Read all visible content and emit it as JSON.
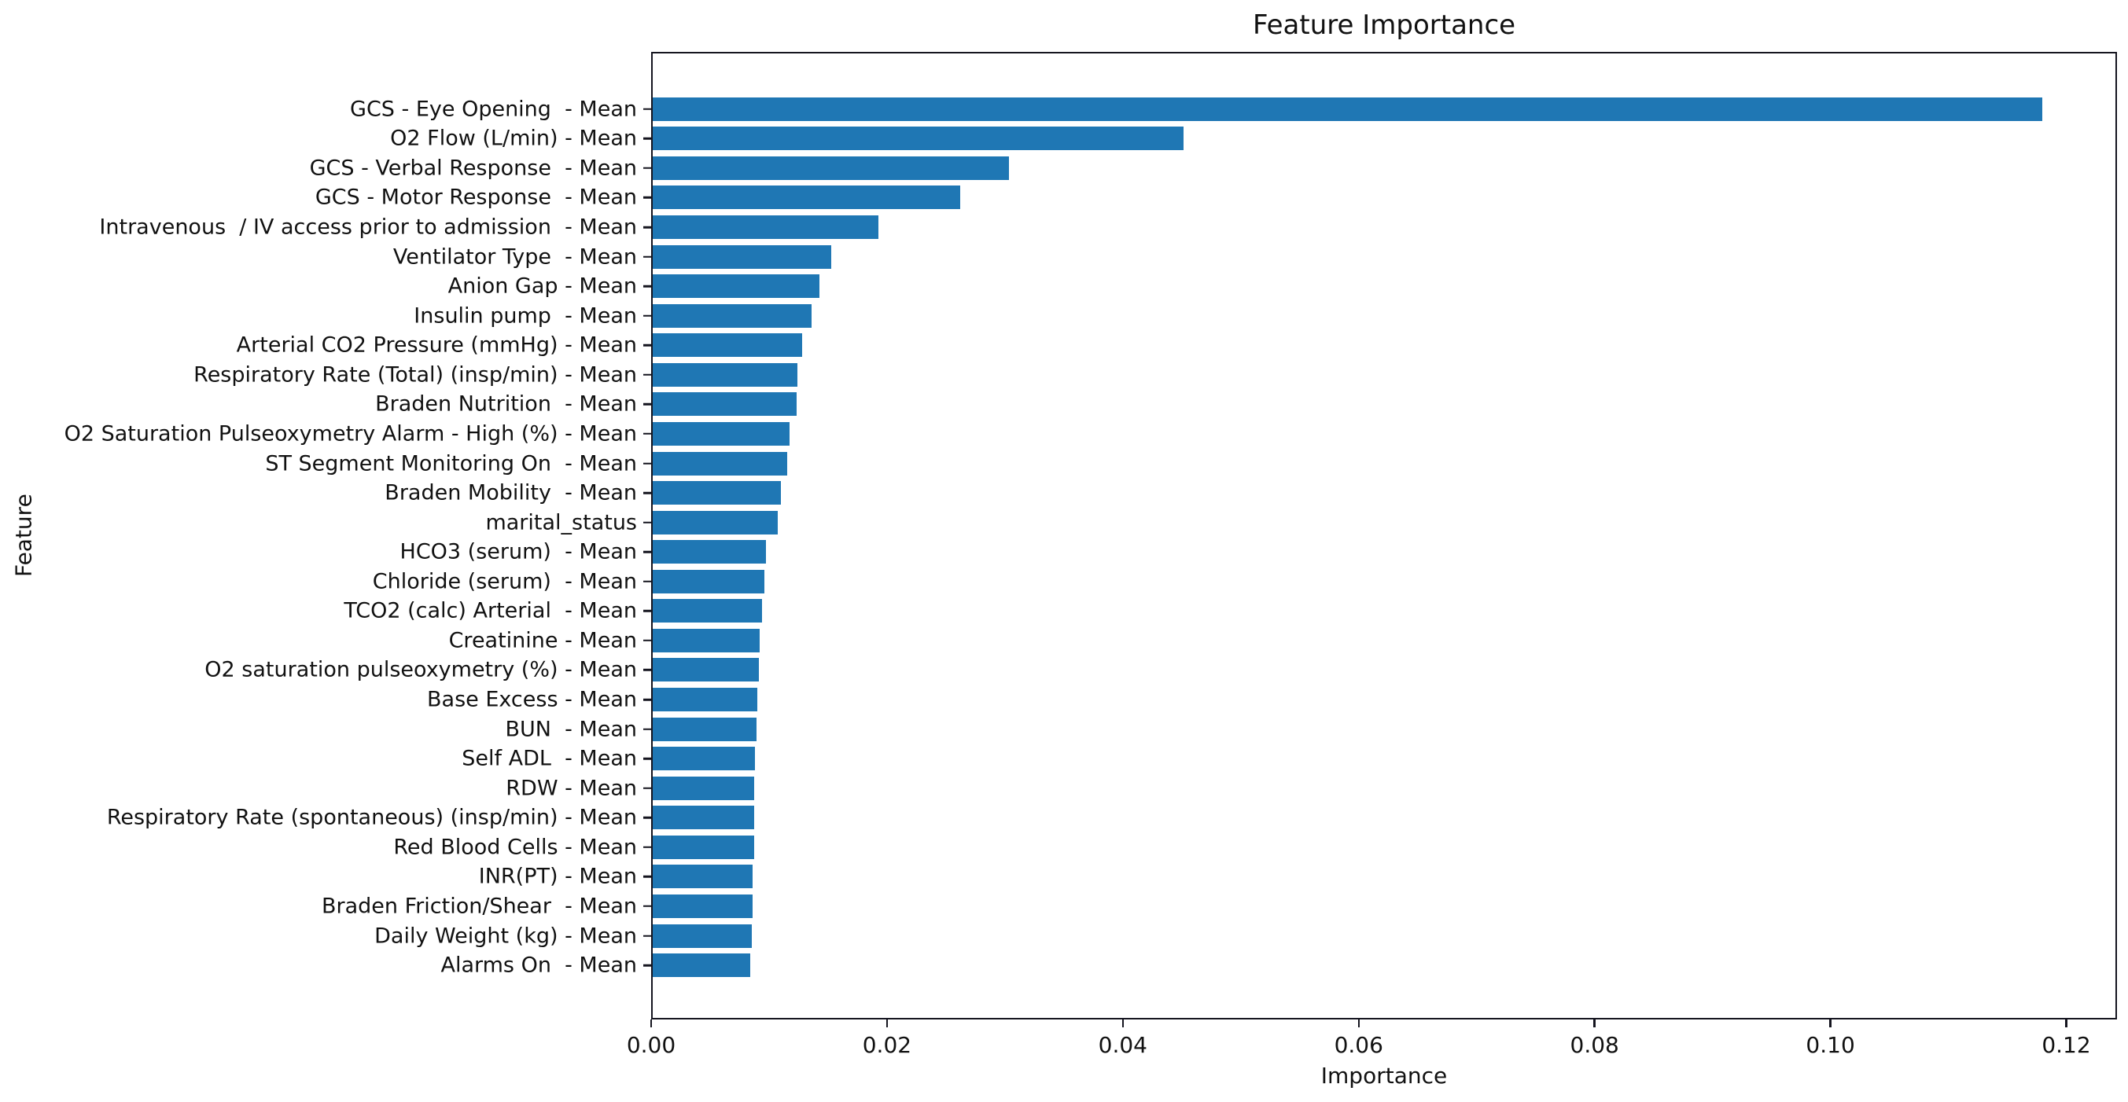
{
  "chart_data": {
    "type": "bar",
    "orientation": "horizontal",
    "title": "Feature Importance",
    "xlabel": "Importance",
    "ylabel": "Feature",
    "bar_color": "#1f77b4",
    "axis_color": "#15151f",
    "grid": false,
    "legend": "none",
    "xlim": [
      0,
      0.1243
    ],
    "x_ticks": [
      "0.00",
      "0.02",
      "0.04",
      "0.06",
      "0.08",
      "0.10",
      "0.12"
    ],
    "x_tick_values": [
      0,
      0.02,
      0.04,
      0.06,
      0.08,
      0.1,
      0.12
    ],
    "categories": [
      "GCS - Eye Opening  - Mean",
      "O2 Flow (L/min) - Mean",
      "GCS - Verbal Response  - Mean",
      "GCS - Motor Response  - Mean",
      "Intravenous  / IV access prior to admission  - Mean",
      "Ventilator Type  - Mean",
      "Anion Gap - Mean",
      "Insulin pump  - Mean",
      "Arterial CO2 Pressure (mmHg) - Mean",
      "Respiratory Rate (Total) (insp/min) - Mean",
      "Braden Nutrition  - Mean",
      "O2 Saturation Pulseoxymetry Alarm - High (%) - Mean",
      "ST Segment Monitoring On  - Mean",
      "Braden Mobility  - Mean",
      "marital_status",
      "HCO3 (serum)  - Mean",
      "Chloride (serum)  - Mean",
      "TCO2 (calc) Arterial  - Mean",
      "Creatinine - Mean",
      "O2 saturation pulseoxymetry (%) - Mean",
      "Base Excess - Mean",
      "BUN  - Mean",
      "Self ADL  - Mean",
      "RDW - Mean",
      "Respiratory Rate (spontaneous) (insp/min) - Mean",
      "Red Blood Cells - Mean",
      "INR(PT) - Mean",
      "Braden Friction/Shear  - Mean",
      "Daily Weight (kg) - Mean",
      "Alarms On  - Mean"
    ],
    "values": [
      0.1181,
      0.0451,
      0.0303,
      0.0261,
      0.0192,
      0.0152,
      0.0142,
      0.0135,
      0.0127,
      0.0123,
      0.0122,
      0.0116,
      0.0114,
      0.0109,
      0.0106,
      0.0096,
      0.0095,
      0.0093,
      0.0091,
      0.009,
      0.0089,
      0.0088,
      0.0087,
      0.0086,
      0.0086,
      0.0086,
      0.0085,
      0.0085,
      0.0084,
      0.0083
    ]
  }
}
